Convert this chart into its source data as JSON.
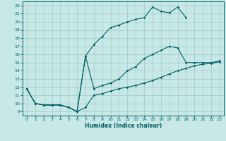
{
  "xlabel": "Humidex (Indice chaleur)",
  "xlim": [
    -0.5,
    23.5
  ],
  "ylim": [
    8.5,
    22.5
  ],
  "xticks": [
    0,
    1,
    2,
    3,
    4,
    5,
    6,
    7,
    8,
    9,
    10,
    11,
    12,
    13,
    14,
    15,
    16,
    17,
    18,
    19,
    20,
    21,
    22,
    23
  ],
  "yticks": [
    9,
    10,
    11,
    12,
    13,
    14,
    15,
    16,
    17,
    18,
    19,
    20,
    21,
    22
  ],
  "bg_color": "#c8e8e8",
  "line_color": "#006060",
  "grid_color": "#a0c8c8",
  "lines": [
    {
      "x": [
        0,
        1,
        2,
        3,
        4,
        5,
        6,
        7,
        8,
        9,
        10,
        11,
        12,
        13,
        14,
        15,
        16,
        17,
        18,
        19,
        20,
        21,
        22,
        23
      ],
      "y": [
        11.8,
        10.0,
        9.8,
        9.8,
        9.8,
        9.5,
        9.0,
        9.5,
        11.0,
        11.2,
        11.5,
        11.8,
        12.0,
        12.2,
        12.5,
        12.8,
        13.2,
        13.6,
        14.0,
        14.3,
        14.6,
        14.8,
        14.9,
        15.1
      ]
    },
    {
      "x": [
        0,
        1,
        2,
        3,
        4,
        5,
        6,
        7,
        8,
        9,
        10,
        11,
        12,
        13,
        14,
        15,
        16,
        17,
        18,
        19,
        20,
        21,
        22,
        23
      ],
      "y": [
        11.8,
        10.0,
        9.8,
        9.8,
        9.8,
        9.5,
        9.0,
        15.8,
        11.8,
        12.2,
        12.5,
        13.0,
        14.0,
        14.5,
        15.5,
        16.0,
        16.5,
        17.0,
        16.8,
        15.0,
        15.0,
        15.0,
        15.0,
        15.2
      ]
    },
    {
      "x": [
        0,
        1,
        2,
        3,
        4,
        5,
        6,
        7,
        8,
        9,
        10,
        11,
        12,
        13,
        14,
        15,
        16,
        17,
        18,
        19
      ],
      "y": [
        11.8,
        10.0,
        9.8,
        9.8,
        9.8,
        9.5,
        9.0,
        15.8,
        17.2,
        18.2,
        19.3,
        19.6,
        20.0,
        20.3,
        20.5,
        21.8,
        21.3,
        21.1,
        21.8,
        20.5
      ]
    }
  ]
}
